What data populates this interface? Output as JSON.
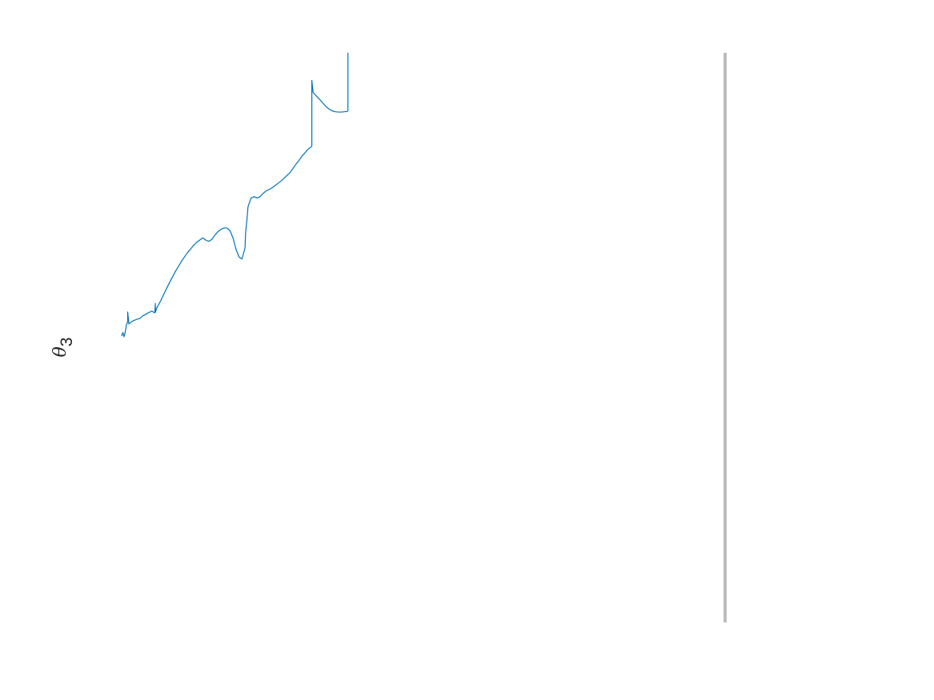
{
  "chart_data": {
    "type": "line",
    "title": "",
    "xlabel": "",
    "ylabel_symbol": "θ",
    "ylabel_subscript": "3",
    "grid": false,
    "legend": "none",
    "line_color": "#0072BD",
    "divider_color": "#BDBDBD",
    "xlim": [
      0,
      100
    ],
    "ylim": [
      0,
      100
    ],
    "series": [
      {
        "x": [
          0.0,
          0.2,
          0.4,
          0.6,
          0.8,
          1.0,
          1.0,
          1.2,
          1.6,
          2.0,
          2.5,
          3.0,
          3.5,
          4.0,
          4.5,
          5.0,
          5.5,
          5.6,
          5.6,
          5.7,
          5.8,
          6.0,
          6.5,
          7.0,
          7.5,
          8.0,
          8.5,
          9.0,
          9.5,
          10.0,
          10.5,
          11.0,
          11.5,
          12.0,
          12.5,
          13.0,
          13.5,
          14.0,
          14.5,
          15.0,
          15.5,
          16.0,
          16.5,
          17.0,
          17.5,
          18.0,
          18.5,
          19.0,
          19.5,
          20.0,
          20.5,
          20.6,
          20.8,
          21.0,
          21.5,
          22.0,
          22.5,
          23.0,
          23.5,
          24.0,
          24.5,
          25.0,
          25.5,
          26.0,
          26.5,
          27.0,
          27.5,
          28.0,
          28.5,
          29.0,
          29.5,
          30.0,
          30.5,
          31.0,
          31.5,
          31.6,
          31.6,
          31.8,
          32.0,
          32.5,
          33.0,
          33.5,
          34.0,
          34.5,
          35.0,
          35.5,
          36.0,
          36.5,
          37.0,
          37.5,
          37.6,
          37.6
        ],
        "y": [
          0.5,
          1.8,
          0.3,
          2.0,
          4.5,
          5.5,
          9.0,
          4.8,
          5.5,
          6.0,
          6.4,
          6.7,
          7.6,
          8.2,
          8.8,
          9.3,
          8.7,
          12.0,
          8.9,
          9.5,
          10.3,
          11.0,
          13.0,
          15.2,
          17.4,
          19.5,
          21.5,
          23.5,
          25.2,
          27.0,
          28.5,
          30.0,
          31.2,
          32.5,
          33.5,
          34.3,
          35.0,
          34.2,
          33.8,
          34.5,
          36.0,
          37.2,
          38.0,
          38.5,
          38.5,
          37.6,
          35.0,
          31.0,
          28.3,
          27.6,
          31.5,
          37.0,
          41.0,
          46.0,
          49.0,
          49.5,
          49.0,
          49.5,
          50.6,
          51.5,
          52.0,
          52.6,
          53.4,
          54.2,
          55.0,
          56.0,
          57.0,
          58.0,
          59.5,
          61.0,
          62.3,
          63.8,
          65.0,
          66.2,
          67.0,
          67.3,
          90.3,
          86.2,
          85.6,
          84.5,
          83.4,
          82.2,
          81.0,
          80.2,
          79.6,
          79.3,
          79.2,
          79.2,
          79.3,
          79.4,
          79.8,
          100.0
        ]
      }
    ]
  }
}
